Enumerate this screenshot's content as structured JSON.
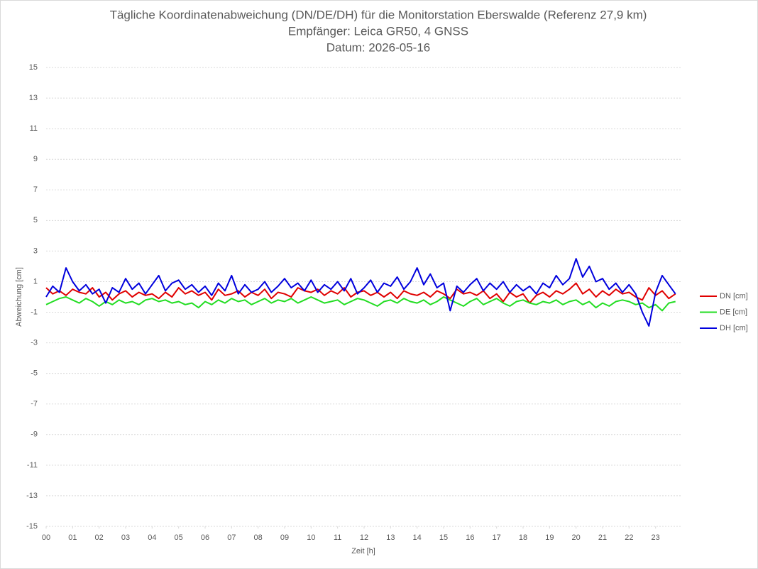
{
  "chart_data": {
    "type": "line",
    "title_lines": [
      "Tägliche Koordinatenabweichung (DN/DE/DH) für die Monitorstation Eberswalde (Referenz 27,9 km)",
      "Empfänger: Leica GR50, 4 GNSS",
      "Datum: 2026-05-16"
    ],
    "x_label": "Zeit [h]",
    "y_label": "Abweichung [cm]",
    "x": [
      0,
      0.25,
      0.5,
      0.75,
      1,
      1.25,
      1.5,
      1.75,
      2,
      2.25,
      2.5,
      2.75,
      3,
      3.25,
      3.5,
      3.75,
      4,
      4.25,
      4.5,
      4.75,
      5,
      5.25,
      5.5,
      5.75,
      6,
      6.25,
      6.5,
      6.75,
      7,
      7.25,
      7.5,
      7.75,
      8,
      8.25,
      8.5,
      8.75,
      9,
      9.25,
      9.5,
      9.75,
      10,
      10.25,
      10.5,
      10.75,
      11,
      11.25,
      11.5,
      11.75,
      12,
      12.25,
      12.5,
      12.75,
      13,
      13.25,
      13.5,
      13.75,
      14,
      14.25,
      14.5,
      14.75,
      15,
      15.25,
      15.5,
      15.75,
      16,
      16.25,
      16.5,
      16.75,
      17,
      17.25,
      17.5,
      17.75,
      18,
      18.25,
      18.5,
      18.75,
      19,
      19.25,
      19.5,
      19.75,
      20,
      20.25,
      20.5,
      20.75,
      21,
      21.25,
      21.5,
      21.75,
      22,
      22.25,
      22.5,
      22.75,
      23,
      23.25,
      23.5,
      23.75
    ],
    "xlim": [
      0,
      24
    ],
    "xticks": [
      {
        "value": 0,
        "label": "00"
      },
      {
        "value": 1,
        "label": "01"
      },
      {
        "value": 2,
        "label": "02"
      },
      {
        "value": 3,
        "label": "03"
      },
      {
        "value": 4,
        "label": "04"
      },
      {
        "value": 5,
        "label": "05"
      },
      {
        "value": 6,
        "label": "06"
      },
      {
        "value": 7,
        "label": "07"
      },
      {
        "value": 8,
        "label": "08"
      },
      {
        "value": 9,
        "label": "09"
      },
      10,
      11,
      12,
      13,
      14,
      15,
      16,
      17,
      18,
      19,
      20,
      21,
      22,
      23
    ],
    "ylim": [
      -15,
      15
    ],
    "yticks": [
      -15,
      -13,
      -11,
      -9,
      -7,
      -5,
      -3,
      -1,
      1,
      3,
      5,
      7,
      9,
      11,
      13,
      15
    ],
    "grid": true,
    "legend": "right",
    "series": [
      {
        "name": "DN [cm]",
        "color": "#e00000",
        "values": [
          0.6,
          0.2,
          0.4,
          0.1,
          0.5,
          0.3,
          0.2,
          0.6,
          0.0,
          0.3,
          -0.2,
          0.2,
          0.4,
          0.0,
          0.3,
          0.1,
          0.2,
          -0.1,
          0.3,
          0.0,
          0.6,
          0.2,
          0.4,
          0.1,
          0.3,
          -0.2,
          0.5,
          0.1,
          0.2,
          0.4,
          0.0,
          0.3,
          0.1,
          0.5,
          -0.1,
          0.3,
          0.2,
          0.0,
          0.6,
          0.4,
          0.3,
          0.5,
          0.1,
          0.4,
          0.2,
          0.6,
          0.0,
          0.3,
          0.4,
          0.1,
          0.3,
          0.0,
          0.3,
          -0.1,
          0.4,
          0.2,
          0.1,
          0.3,
          0.0,
          0.4,
          0.2,
          -0.1,
          0.5,
          0.2,
          0.3,
          0.1,
          0.4,
          -0.1,
          0.2,
          -0.3,
          0.3,
          0.0,
          0.2,
          -0.4,
          0.1,
          0.3,
          0.0,
          0.4,
          0.2,
          0.5,
          0.9,
          0.2,
          0.5,
          0.0,
          0.4,
          0.1,
          0.5,
          0.2,
          0.3,
          0.0,
          -0.2,
          0.6,
          0.1,
          0.4,
          -0.1,
          0.2
        ]
      },
      {
        "name": "DE [cm]",
        "color": "#22dd22",
        "values": [
          -0.5,
          -0.3,
          -0.1,
          0.0,
          -0.2,
          -0.4,
          -0.1,
          -0.3,
          -0.6,
          -0.3,
          -0.5,
          -0.2,
          -0.4,
          -0.3,
          -0.5,
          -0.2,
          -0.1,
          -0.3,
          -0.2,
          -0.4,
          -0.3,
          -0.5,
          -0.4,
          -0.7,
          -0.3,
          -0.5,
          -0.2,
          -0.4,
          -0.1,
          -0.3,
          -0.2,
          -0.5,
          -0.3,
          -0.1,
          -0.4,
          -0.2,
          -0.3,
          -0.1,
          -0.4,
          -0.2,
          0.0,
          -0.2,
          -0.4,
          -0.3,
          -0.2,
          -0.5,
          -0.3,
          -0.1,
          -0.2,
          -0.4,
          -0.6,
          -0.3,
          -0.2,
          -0.4,
          -0.1,
          -0.3,
          -0.4,
          -0.2,
          -0.5,
          -0.3,
          0.0,
          -0.2,
          -0.4,
          -0.6,
          -0.3,
          -0.1,
          -0.5,
          -0.3,
          -0.1,
          -0.4,
          -0.6,
          -0.3,
          -0.2,
          -0.4,
          -0.5,
          -0.3,
          -0.4,
          -0.2,
          -0.5,
          -0.3,
          -0.2,
          -0.5,
          -0.3,
          -0.7,
          -0.4,
          -0.6,
          -0.3,
          -0.2,
          -0.3,
          -0.5,
          -0.4,
          -0.7,
          -0.5,
          -0.9,
          -0.4,
          -0.3
        ]
      },
      {
        "name": "DH [cm]",
        "color": "#0000dd",
        "values": [
          0.0,
          0.7,
          0.3,
          1.9,
          1.0,
          0.4,
          0.8,
          0.2,
          0.5,
          -0.4,
          0.6,
          0.3,
          1.2,
          0.5,
          0.9,
          0.2,
          0.8,
          1.4,
          0.4,
          0.9,
          1.1,
          0.5,
          0.8,
          0.3,
          0.7,
          0.1,
          0.9,
          0.4,
          1.4,
          0.2,
          0.8,
          0.3,
          0.5,
          1.0,
          0.3,
          0.7,
          1.2,
          0.6,
          0.9,
          0.4,
          1.1,
          0.3,
          0.8,
          0.5,
          1.0,
          0.4,
          1.2,
          0.2,
          0.6,
          1.1,
          0.3,
          0.9,
          0.7,
          1.3,
          0.5,
          1.0,
          1.9,
          0.8,
          1.5,
          0.6,
          0.9,
          -0.9,
          0.7,
          0.3,
          0.8,
          1.2,
          0.4,
          0.9,
          0.5,
          1.0,
          0.3,
          0.8,
          0.4,
          0.7,
          0.2,
          0.9,
          0.6,
          1.4,
          0.8,
          1.2,
          2.5,
          1.3,
          2.0,
          1.0,
          1.2,
          0.5,
          0.9,
          0.3,
          0.8,
          0.2,
          -1.0,
          -1.9,
          0.3,
          1.4,
          0.8,
          0.2
        ]
      }
    ]
  }
}
